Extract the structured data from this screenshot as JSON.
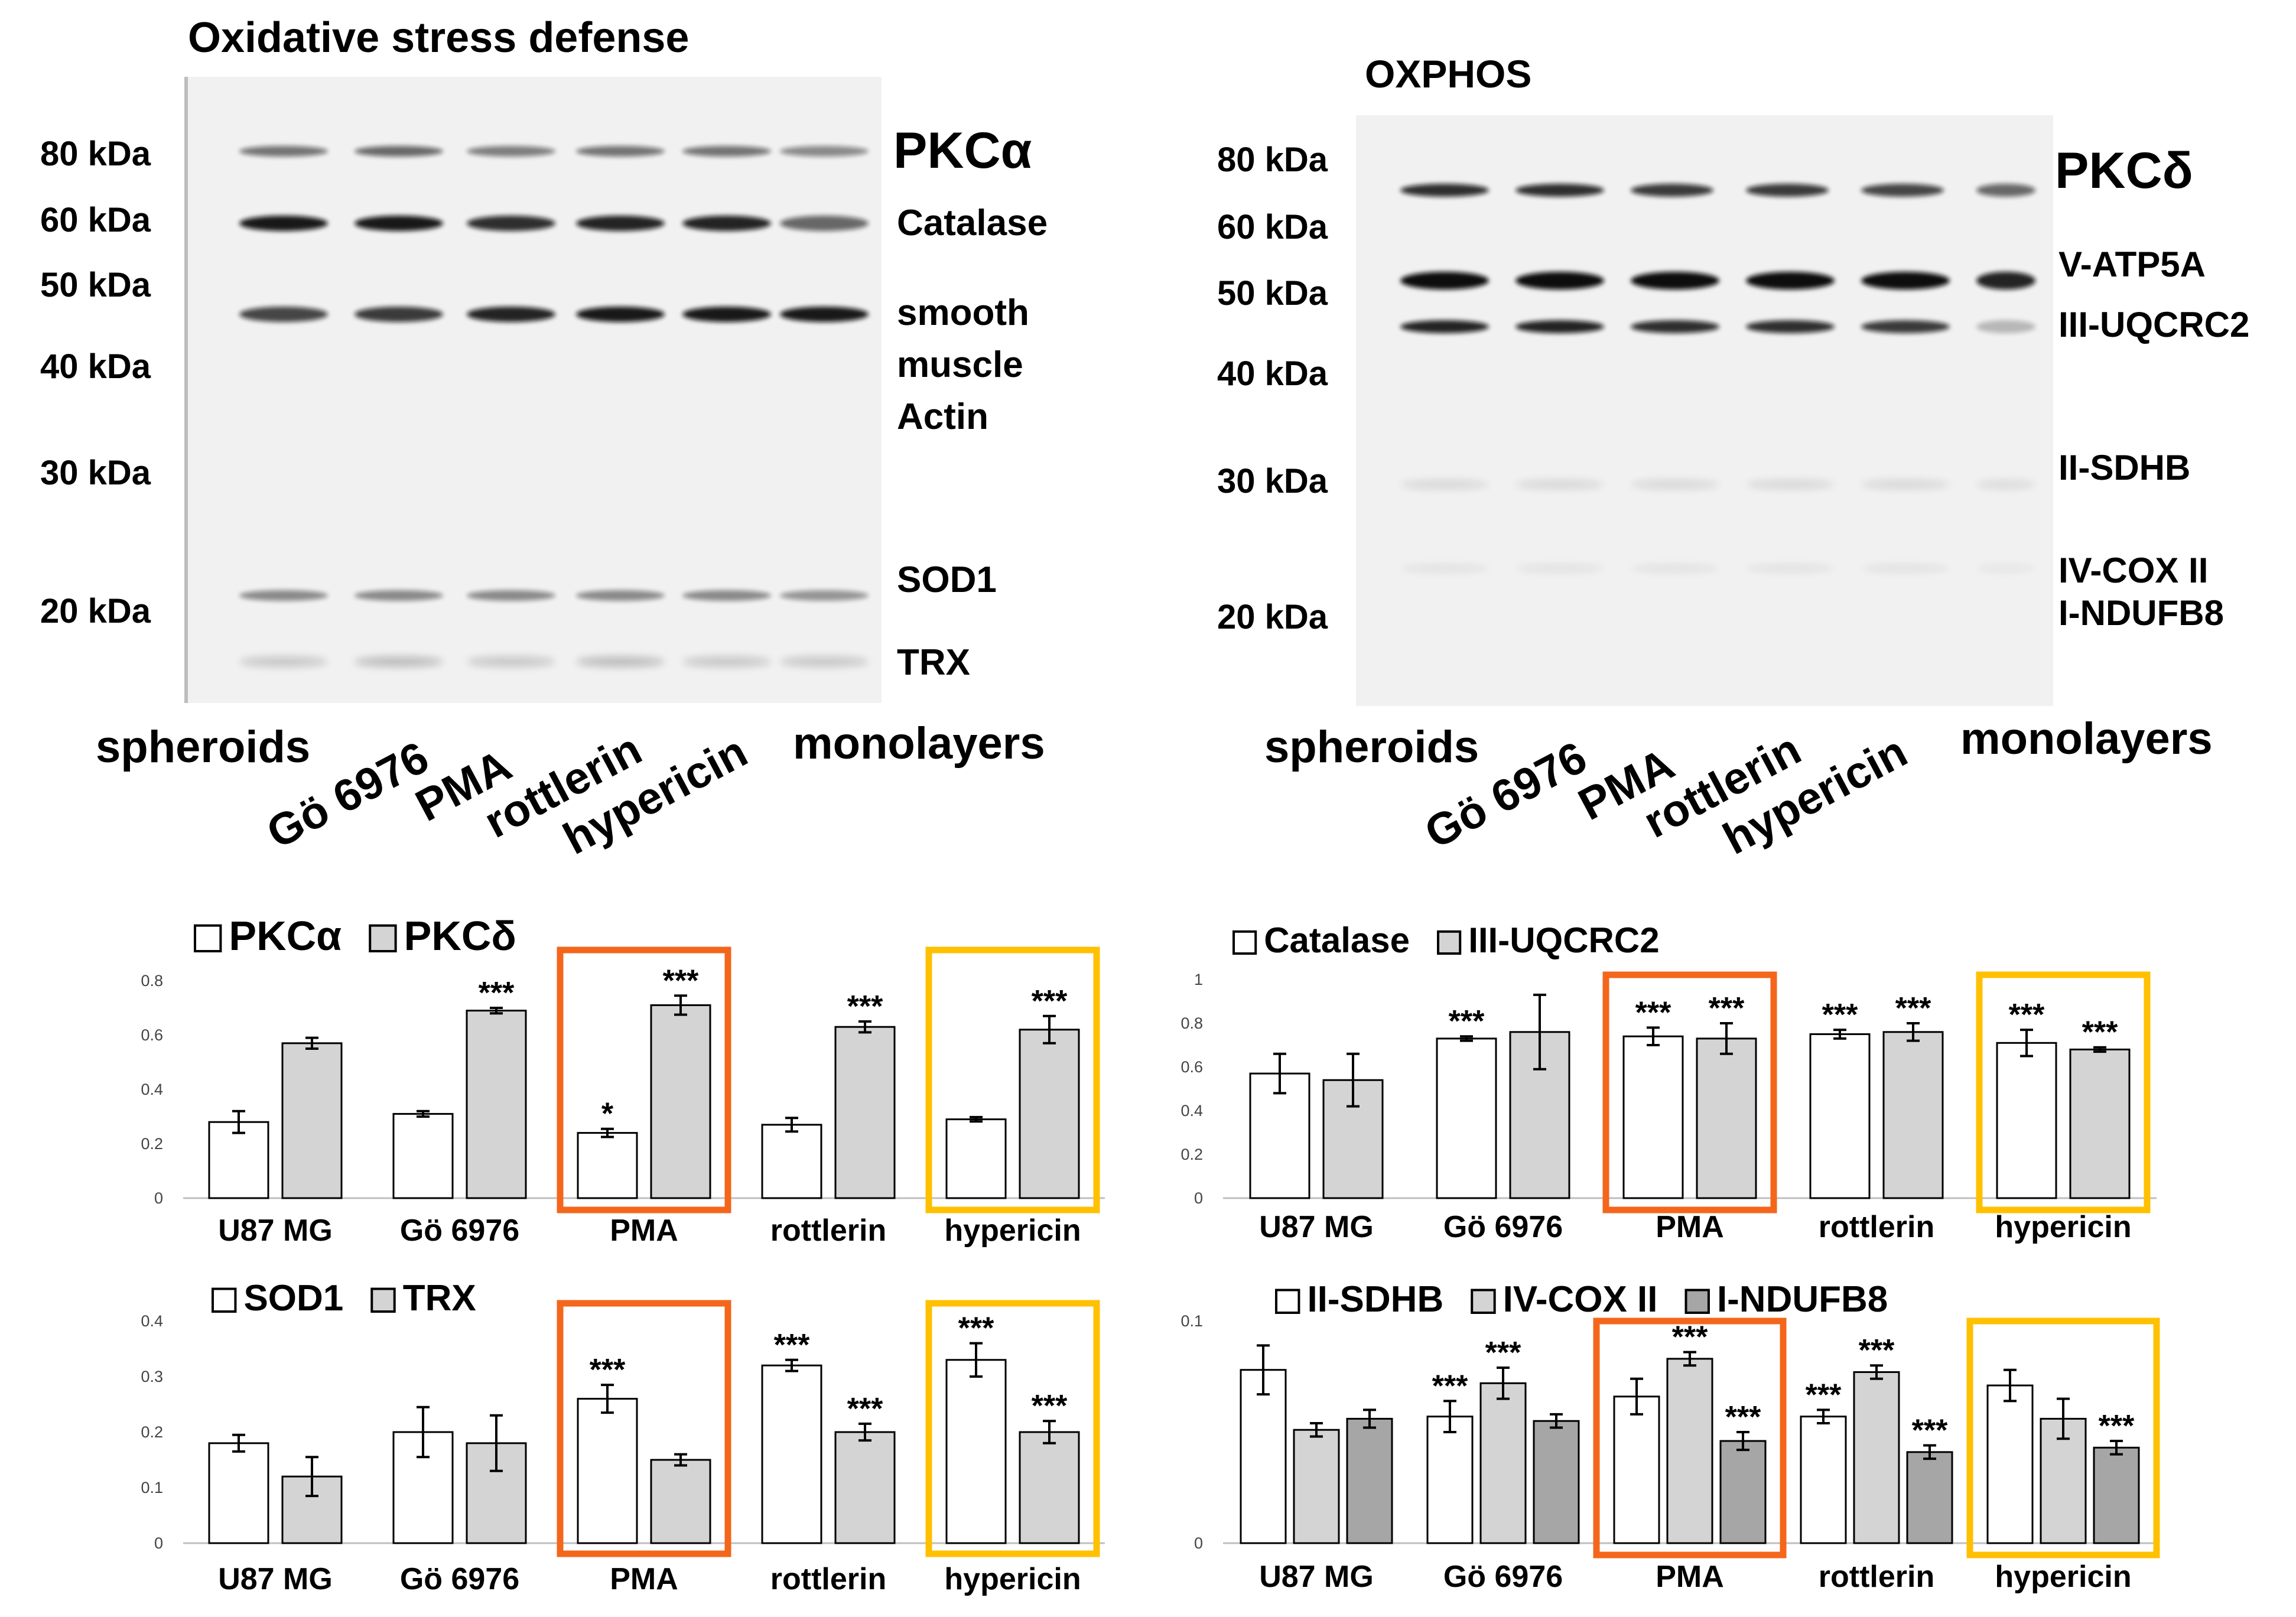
{
  "blots": {
    "left": {
      "title": "Oxidative stress defense",
      "markers": [
        "80 kDa",
        "60 kDa",
        "50 kDa",
        "40 kDa",
        "30 kDa",
        "20 kDa"
      ],
      "proteins": [
        "PKCα",
        "Catalase",
        "smooth",
        "muscle",
        "Actin",
        "SOD1",
        "TRX"
      ],
      "lanes": [
        "spheroids",
        "Gö 6976",
        "PMA",
        "rottlerin",
        "hypericin",
        "monolayers"
      ]
    },
    "right": {
      "title": "OXPHOS",
      "markers": [
        "80 kDa",
        "60 kDa",
        "50 kDa",
        "40 kDa",
        "30 kDa",
        "20 kDa"
      ],
      "proteins": [
        "PKCδ",
        "V-ATP5A",
        "III-UQCRC2",
        "II-SDHB",
        "IV-COX II",
        "I-NDUFB8"
      ],
      "lanes": [
        "spheroids",
        "Gö 6976",
        "PMA",
        "rottlerin",
        "hypericin",
        "monolayers"
      ]
    }
  },
  "colors": {
    "white_bar": "#ffffff",
    "light_gray_bar": "#d4d4d4",
    "dark_gray_bar": "#a6a6a6",
    "pma_box": "#f4661b",
    "hypericin_box": "#ffc000"
  },
  "chart_data": [
    {
      "type": "bar",
      "categories": [
        "U87 MG",
        "Gö 6976",
        "PMA",
        "rottlerin",
        "hypericin"
      ],
      "ylim": [
        0,
        0.8
      ],
      "yticks": [
        "0",
        "0.2",
        "0.4",
        "0.6",
        "0.8"
      ],
      "series": [
        {
          "name": "PKCα",
          "color": "#ffffff",
          "values": [
            0.28,
            0.31,
            0.24,
            0.27,
            0.29
          ],
          "errors": [
            0.04,
            0.01,
            0.015,
            0.025,
            0.008
          ],
          "sig": [
            "",
            "",
            "*",
            "",
            ""
          ]
        },
        {
          "name": "PKCδ",
          "color": "#d4d4d4",
          "values": [
            0.57,
            0.69,
            0.71,
            0.63,
            0.62
          ],
          "errors": [
            0.02,
            0.01,
            0.035,
            0.02,
            0.05
          ],
          "sig": [
            "",
            "***",
            "***",
            "***",
            "***"
          ]
        }
      ],
      "highlight": [
        "PMA",
        "hypericin"
      ]
    },
    {
      "type": "bar",
      "categories": [
        "U87 MG",
        "Gö 6976",
        "PMA",
        "rottlerin",
        "hypericin"
      ],
      "ylim": [
        0,
        1
      ],
      "yticks": [
        "0",
        "0.2",
        "0.4",
        "0.6",
        "0.8",
        "1"
      ],
      "series": [
        {
          "name": "Catalase",
          "color": "#ffffff",
          "values": [
            0.57,
            0.73,
            0.74,
            0.75,
            0.71
          ],
          "errors": [
            0.09,
            0.01,
            0.04,
            0.02,
            0.06
          ],
          "sig": [
            "",
            "***",
            "***",
            "***",
            "***"
          ]
        },
        {
          "name": "III-UQCRC2",
          "color": "#d4d4d4",
          "values": [
            0.54,
            0.76,
            0.73,
            0.76,
            0.68
          ],
          "errors": [
            0.12,
            0.17,
            0.07,
            0.04,
            0.01
          ],
          "sig": [
            "",
            "",
            "***",
            "***",
            "***"
          ]
        }
      ],
      "highlight": [
        "PMA",
        "hypericin"
      ]
    },
    {
      "type": "bar",
      "categories": [
        "U87 MG",
        "Gö 6976",
        "PMA",
        "rottlerin",
        "hypericin"
      ],
      "ylim": [
        0,
        0.4
      ],
      "yticks": [
        "0",
        "0.1",
        "0.2",
        "0.3",
        "0.4"
      ],
      "series": [
        {
          "name": "SOD1",
          "color": "#ffffff",
          "values": [
            0.18,
            0.2,
            0.26,
            0.32,
            0.33
          ],
          "errors": [
            0.015,
            0.045,
            0.025,
            0.01,
            0.03
          ],
          "sig": [
            "",
            "",
            "***",
            "***",
            "***"
          ]
        },
        {
          "name": "TRX",
          "color": "#d4d4d4",
          "values": [
            0.12,
            0.18,
            0.15,
            0.2,
            0.2
          ],
          "errors": [
            0.035,
            0.05,
            0.01,
            0.015,
            0.02
          ],
          "sig": [
            "",
            "",
            "",
            "***",
            "***"
          ]
        }
      ],
      "highlight": [
        "PMA",
        "hypericin"
      ]
    },
    {
      "type": "bar",
      "categories": [
        "U87 MG",
        "Gö 6976",
        "PMA",
        "rottlerin",
        "hypericin"
      ],
      "ylim": [
        0,
        0.1
      ],
      "yticks": [
        "0",
        "0.1"
      ],
      "series": [
        {
          "name": "II-SDHB",
          "color": "#ffffff",
          "values": [
            0.078,
            0.057,
            0.066,
            0.057,
            0.071
          ],
          "errors": [
            0.011,
            0.007,
            0.008,
            0.003,
            0.007
          ],
          "sig": [
            "",
            "***",
            "",
            "***",
            ""
          ]
        },
        {
          "name": "IV-COX II",
          "color": "#d4d4d4",
          "values": [
            0.051,
            0.072,
            0.083,
            0.077,
            0.056
          ],
          "errors": [
            0.003,
            0.007,
            0.003,
            0.003,
            0.009
          ],
          "sig": [
            "",
            "***",
            "***",
            "***",
            ""
          ]
        },
        {
          "name": "I-NDUFB8",
          "color": "#a6a6a6",
          "values": [
            0.056,
            0.055,
            0.046,
            0.041,
            0.043
          ],
          "errors": [
            0.004,
            0.003,
            0.004,
            0.003,
            0.003
          ],
          "sig": [
            "",
            "",
            "***",
            "***",
            "***"
          ]
        }
      ],
      "highlight": [
        "PMA",
        "hypericin"
      ]
    }
  ]
}
